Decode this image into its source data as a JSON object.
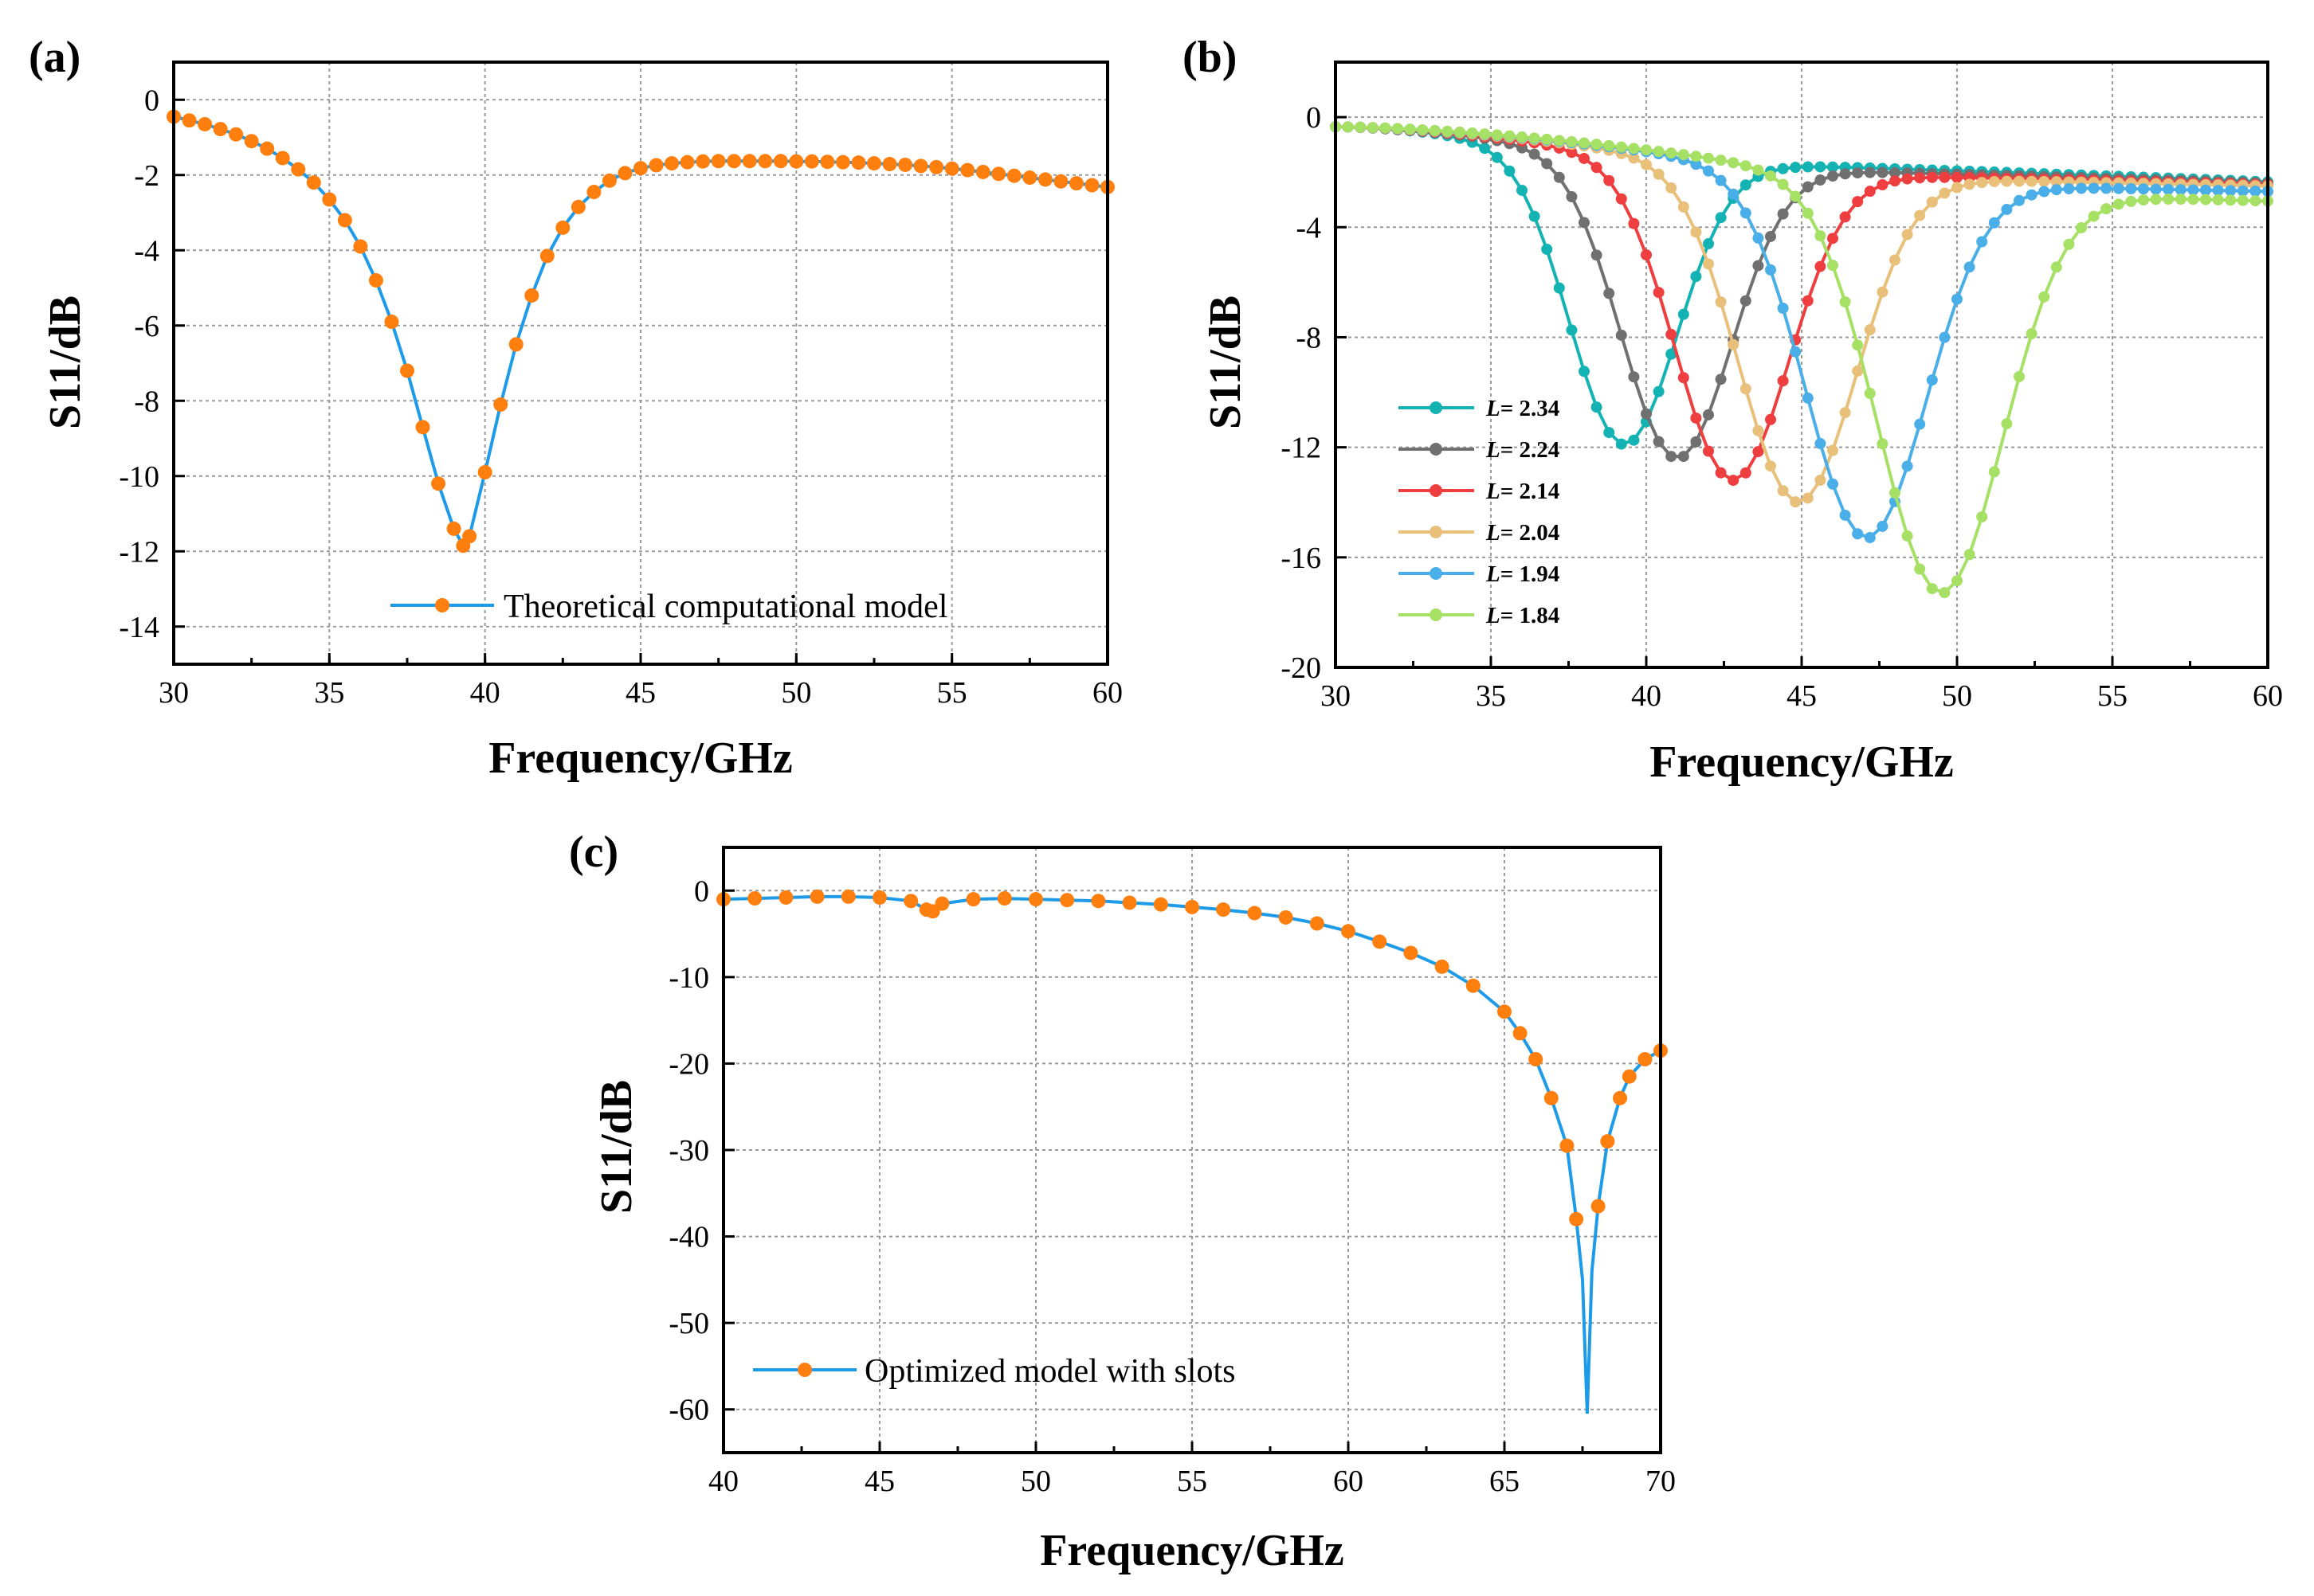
{
  "chart_data": [
    {
      "id": "a",
      "panel_label": "(a)",
      "type": "line",
      "xlabel": "Frequency/GHz",
      "ylabel": "S11/dB",
      "xlim": [
        30,
        60
      ],
      "ylim": [
        -15,
        1
      ],
      "xticks": [
        30,
        35,
        40,
        45,
        50,
        55,
        60
      ],
      "yticks": [
        0,
        -2,
        -4,
        -6,
        -8,
        -10,
        -12,
        -14
      ],
      "grid": true,
      "legend": "bottom-right",
      "series": [
        {
          "name": "Theoretical computational model",
          "line_color": "#1e9be8",
          "marker_color": "#ff7f0e",
          "x": [
            30,
            30.5,
            31,
            31.5,
            32,
            32.5,
            33,
            33.5,
            34,
            34.5,
            35,
            35.5,
            36,
            36.5,
            37,
            37.5,
            38,
            38.5,
            39,
            39.3,
            39.5,
            40,
            40.5,
            41,
            41.5,
            42,
            42.5,
            43,
            43.5,
            44,
            44.5,
            45,
            45.5,
            46,
            46.5,
            47,
            47.5,
            48,
            48.5,
            49,
            49.5,
            50,
            50.5,
            51,
            51.5,
            52,
            52.5,
            53,
            53.5,
            54,
            54.5,
            55,
            55.5,
            56,
            56.5,
            57,
            57.5,
            58,
            58.5,
            59,
            59.5,
            60
          ],
          "y": [
            -0.45,
            -0.55,
            -0.65,
            -0.78,
            -0.92,
            -1.1,
            -1.3,
            -1.55,
            -1.85,
            -2.2,
            -2.65,
            -3.2,
            -3.9,
            -4.8,
            -5.9,
            -7.2,
            -8.7,
            -10.2,
            -11.4,
            -11.85,
            -11.6,
            -9.9,
            -8.1,
            -6.5,
            -5.2,
            -4.15,
            -3.4,
            -2.85,
            -2.45,
            -2.15,
            -1.95,
            -1.82,
            -1.74,
            -1.69,
            -1.66,
            -1.64,
            -1.63,
            -1.63,
            -1.63,
            -1.63,
            -1.63,
            -1.64,
            -1.64,
            -1.65,
            -1.66,
            -1.67,
            -1.69,
            -1.71,
            -1.73,
            -1.76,
            -1.79,
            -1.83,
            -1.87,
            -1.92,
            -1.97,
            -2.02,
            -2.07,
            -2.12,
            -2.17,
            -2.22,
            -2.27,
            -2.32
          ]
        }
      ]
    },
    {
      "id": "b",
      "panel_label": "(b)",
      "type": "line",
      "xlabel": "Frequency/GHz",
      "ylabel": "S11/dB",
      "xlim": [
        30,
        60
      ],
      "ylim": [
        -20,
        2
      ],
      "xticks": [
        30,
        35,
        40,
        45,
        50,
        55,
        60
      ],
      "yticks": [
        0,
        -4,
        -8,
        -12,
        -16,
        -20
      ],
      "grid": true,
      "legend": "bottom-left",
      "legend_prefix": "L",
      "series": [
        {
          "name": "= 2.34",
          "color": "#14b3b3",
          "center": 39.3,
          "depth": -11.9,
          "base": -1.62,
          "end": -2.35
        },
        {
          "name": "= 2.24",
          "color": "#707070",
          "center": 41.0,
          "depth": -12.4,
          "base": -1.85,
          "end": -2.4
        },
        {
          "name": "= 2.14",
          "color": "#ee3e40",
          "center": 42.8,
          "depth": -13.2,
          "base": -2.05,
          "end": -2.45
        },
        {
          "name": "= 2.04",
          "color": "#e8c07a",
          "center": 44.9,
          "depth": -14.0,
          "base": -2.2,
          "end": -2.5
        },
        {
          "name": "= 1.94",
          "color": "#4aaee8",
          "center": 47.1,
          "depth": -15.3,
          "base": -2.45,
          "end": -2.7
        },
        {
          "name": "= 1.84",
          "color": "#a6e065",
          "center": 49.5,
          "depth": -17.3,
          "base": -2.8,
          "end": -3.05
        }
      ]
    },
    {
      "id": "c",
      "panel_label": "(c)",
      "type": "line",
      "xlabel": "Frequency/GHz",
      "ylabel": "S11/dB",
      "xlim": [
        40,
        70
      ],
      "ylim": [
        -65,
        5
      ],
      "xticks": [
        40,
        45,
        50,
        55,
        60,
        65,
        70
      ],
      "yticks": [
        0,
        -10,
        -20,
        -30,
        -40,
        -50,
        -60
      ],
      "grid": true,
      "legend": "bottom-left",
      "series": [
        {
          "name": "Optimized model with slots",
          "line_color": "#1e9be8",
          "marker_color": "#ff7f0e",
          "x": [
            40,
            41,
            42,
            43,
            44,
            45,
            46,
            46.5,
            46.7,
            47,
            48,
            49,
            50,
            51,
            52,
            53,
            54,
            55,
            56,
            57,
            58,
            59,
            60,
            61,
            62,
            63,
            64,
            65,
            65.5,
            66,
            66.5,
            67,
            67.3,
            67.5,
            67.65,
            67.8,
            68,
            68.3,
            68.7,
            69,
            69.5,
            70
          ],
          "y": [
            -1.0,
            -0.9,
            -0.8,
            -0.7,
            -0.7,
            -0.8,
            -1.2,
            -2.2,
            -2.4,
            -1.5,
            -1.0,
            -0.9,
            -1.0,
            -1.1,
            -1.2,
            -1.4,
            -1.6,
            -1.9,
            -2.2,
            -2.6,
            -3.1,
            -3.8,
            -4.7,
            -5.9,
            -7.2,
            -8.8,
            -11.0,
            -14.0,
            -16.5,
            -19.5,
            -24.0,
            -29.5,
            -38.0,
            -45.0,
            -60.5,
            -44.0,
            -36.5,
            -29.0,
            -24.0,
            -21.5,
            -19.5,
            -18.5
          ]
        }
      ]
    }
  ]
}
